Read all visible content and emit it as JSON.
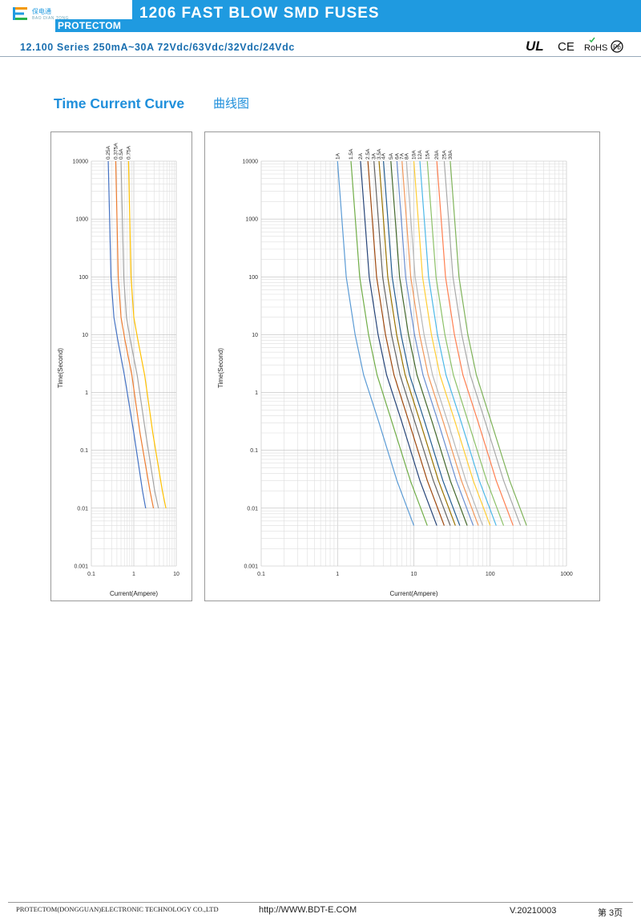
{
  "header": {
    "logo_cn": "保电通",
    "logo_en_small": "BAO DIAN TONG",
    "brand": "PROTECTOM",
    "title": "1206 FAST BLOW SMD FUSES",
    "subtitle": "12.100 Series 250mA~30A 72Vdc/63Vdc/32Vdc/24Vdc",
    "certifications": [
      "UL",
      "CE",
      "RoHS",
      "Pb"
    ]
  },
  "section": {
    "title": "Time Current Curve",
    "title_cn": "曲线图"
  },
  "chart_data": [
    {
      "type": "line",
      "xscale": "log",
      "yscale": "log",
      "xlim": [
        0.1,
        10
      ],
      "ylim": [
        0.001,
        10000
      ],
      "xticks": [
        "0.1",
        "1",
        "10"
      ],
      "yticks": [
        "0.001",
        "0.01",
        "0.1",
        "1",
        "10",
        "100",
        "1000",
        "10000"
      ],
      "xlabel": "Current(Ampere)",
      "ylabel": "Time(Second)",
      "grid": true,
      "series": [
        {
          "name": "0.25A",
          "color": "#4472c4",
          "points": [
            [
              0.25,
              10000
            ],
            [
              0.29,
              100
            ],
            [
              0.34,
              20
            ],
            [
              0.42,
              8
            ],
            [
              0.6,
              2
            ],
            [
              1.0,
              0.2
            ],
            [
              1.6,
              0.02
            ],
            [
              1.9,
              0.01
            ]
          ]
        },
        {
          "name": "0.375A",
          "color": "#ed7d31",
          "points": [
            [
              0.375,
              10000
            ],
            [
              0.43,
              100
            ],
            [
              0.5,
              20
            ],
            [
              0.62,
              8
            ],
            [
              0.9,
              2
            ],
            [
              1.4,
              0.2
            ],
            [
              2.4,
              0.02
            ],
            [
              2.9,
              0.01
            ]
          ]
        },
        {
          "name": "0.5A",
          "color": "#a5a5a5",
          "points": [
            [
              0.5,
              10000
            ],
            [
              0.58,
              100
            ],
            [
              0.67,
              20
            ],
            [
              0.83,
              8
            ],
            [
              1.2,
              2
            ],
            [
              1.9,
              0.2
            ],
            [
              3.1,
              0.02
            ],
            [
              3.8,
              0.01
            ]
          ]
        },
        {
          "name": "0.75A",
          "color": "#ffc000",
          "points": [
            [
              0.75,
              10000
            ],
            [
              0.86,
              100
            ],
            [
              1.0,
              20
            ],
            [
              1.25,
              8
            ],
            [
              1.8,
              2
            ],
            [
              2.8,
              0.2
            ],
            [
              4.7,
              0.02
            ],
            [
              5.7,
              0.01
            ]
          ]
        }
      ]
    },
    {
      "type": "line",
      "xscale": "log",
      "yscale": "log",
      "xlim": [
        0.1,
        1000
      ],
      "ylim": [
        0.001,
        10000
      ],
      "xticks": [
        "0.1",
        "1",
        "10",
        "100",
        "1000"
      ],
      "yticks": [
        "0.001",
        "0.01",
        "0.1",
        "1",
        "10",
        "100",
        "1000",
        "10000"
      ],
      "xlabel": "Current(Ampere)",
      "ylabel": "Time(Second)",
      "grid": true,
      "series": [
        {
          "name": "1A",
          "color": "#5b9bd5",
          "points": [
            [
              1.0,
              10000
            ],
            [
              1.3,
              100
            ],
            [
              1.7,
              10
            ],
            [
              2.2,
              2
            ],
            [
              3.5,
              0.3
            ],
            [
              6,
              0.03
            ],
            [
              10,
              0.005
            ]
          ]
        },
        {
          "name": "1.5A",
          "color": "#70ad47",
          "points": [
            [
              1.5,
              10000
            ],
            [
              1.95,
              100
            ],
            [
              2.55,
              10
            ],
            [
              3.3,
              2
            ],
            [
              5.2,
              0.3
            ],
            [
              9,
              0.03
            ],
            [
              15,
              0.005
            ]
          ]
        },
        {
          "name": "2A",
          "color": "#264478",
          "points": [
            [
              2.0,
              10000
            ],
            [
              2.6,
              100
            ],
            [
              3.4,
              10
            ],
            [
              4.4,
              2
            ],
            [
              7,
              0.3
            ],
            [
              12,
              0.03
            ],
            [
              20,
              0.005
            ]
          ]
        },
        {
          "name": "2.5A",
          "color": "#9e480e",
          "points": [
            [
              2.5,
              10000
            ],
            [
              3.25,
              100
            ],
            [
              4.25,
              10
            ],
            [
              5.5,
              2
            ],
            [
              8.7,
              0.3
            ],
            [
              15,
              0.03
            ],
            [
              25,
              0.005
            ]
          ]
        },
        {
          "name": "3A",
          "color": "#636363",
          "points": [
            [
              3.0,
              10000
            ],
            [
              3.9,
              100
            ],
            [
              5.1,
              10
            ],
            [
              6.6,
              2
            ],
            [
              10.4,
              0.3
            ],
            [
              18,
              0.03
            ],
            [
              30,
              0.005
            ]
          ]
        },
        {
          "name": "3.5A",
          "color": "#997300",
          "points": [
            [
              3.5,
              10000
            ],
            [
              4.55,
              100
            ],
            [
              5.95,
              10
            ],
            [
              7.7,
              2
            ],
            [
              12.2,
              0.3
            ],
            [
              21,
              0.03
            ],
            [
              35,
              0.005
            ]
          ]
        },
        {
          "name": "4A",
          "color": "#255e91",
          "points": [
            [
              4.0,
              10000
            ],
            [
              5.2,
              100
            ],
            [
              6.8,
              10
            ],
            [
              8.8,
              2
            ],
            [
              14,
              0.3
            ],
            [
              24,
              0.03
            ],
            [
              40,
              0.005
            ]
          ]
        },
        {
          "name": "5A",
          "color": "#43682b",
          "points": [
            [
              5.0,
              10000
            ],
            [
              6.5,
              100
            ],
            [
              8.5,
              10
            ],
            [
              11,
              2
            ],
            [
              17.5,
              0.3
            ],
            [
              30,
              0.03
            ],
            [
              50,
              0.005
            ]
          ]
        },
        {
          "name": "6A",
          "color": "#698ed0",
          "points": [
            [
              6.0,
              10000
            ],
            [
              7.8,
              100
            ],
            [
              10.2,
              10
            ],
            [
              13.2,
              2
            ],
            [
              21,
              0.3
            ],
            [
              36,
              0.03
            ],
            [
              60,
              0.005
            ]
          ]
        },
        {
          "name": "7A",
          "color": "#f1975a",
          "points": [
            [
              7.0,
              10000
            ],
            [
              9.1,
              100
            ],
            [
              11.9,
              10
            ],
            [
              15.4,
              2
            ],
            [
              24.5,
              0.3
            ],
            [
              42,
              0.03
            ],
            [
              70,
              0.005
            ]
          ]
        },
        {
          "name": "8A",
          "color": "#b7b7b7",
          "points": [
            [
              8.0,
              10000
            ],
            [
              10.4,
              100
            ],
            [
              13.6,
              10
            ],
            [
              17.6,
              2
            ],
            [
              28,
              0.3
            ],
            [
              48,
              0.03
            ],
            [
              80,
              0.005
            ]
          ]
        },
        {
          "name": "10A",
          "color": "#ffcd33",
          "points": [
            [
              10,
              10000
            ],
            [
              13,
              100
            ],
            [
              17,
              10
            ],
            [
              22,
              2
            ],
            [
              35,
              0.3
            ],
            [
              60,
              0.03
            ],
            [
              100,
              0.005
            ]
          ]
        },
        {
          "name": "12A",
          "color": "#4cb8e8",
          "points": [
            [
              12,
              10000
            ],
            [
              15.6,
              100
            ],
            [
              20.4,
              10
            ],
            [
              26.4,
              2
            ],
            [
              42,
              0.3
            ],
            [
              72,
              0.03
            ],
            [
              120,
              0.005
            ]
          ]
        },
        {
          "name": "15A",
          "color": "#8cc168",
          "points": [
            [
              15,
              10000
            ],
            [
              19.5,
              100
            ],
            [
              25.5,
              10
            ],
            [
              33,
              2
            ],
            [
              52,
              0.3
            ],
            [
              90,
              0.03
            ],
            [
              150,
              0.005
            ]
          ]
        },
        {
          "name": "20A",
          "color": "#ff7f50",
          "points": [
            [
              20,
              10000
            ],
            [
              26,
              100
            ],
            [
              34,
              10
            ],
            [
              44,
              2
            ],
            [
              70,
              0.3
            ],
            [
              120,
              0.03
            ],
            [
              200,
              0.005
            ]
          ]
        },
        {
          "name": "25A",
          "color": "#a9a9a9",
          "points": [
            [
              25,
              10000
            ],
            [
              32.5,
              100
            ],
            [
              42.5,
              10
            ],
            [
              55,
              2
            ],
            [
              87,
              0.3
            ],
            [
              150,
              0.03
            ],
            [
              250,
              0.005
            ]
          ]
        },
        {
          "name": "30A",
          "color": "#7fb35a",
          "points": [
            [
              30,
              10000
            ],
            [
              39,
              100
            ],
            [
              51,
              10
            ],
            [
              66,
              2
            ],
            [
              104,
              0.3
            ],
            [
              180,
              0.03
            ],
            [
              300,
              0.005
            ]
          ]
        }
      ]
    }
  ],
  "footer": {
    "company": "PROTECTOM(DONGGUAN)ELECTRONIC TECHNOLOGY CO.,LTD",
    "url": "http://WWW.BDT-E.COM",
    "version": "V.20210003",
    "page": "第 3页"
  }
}
